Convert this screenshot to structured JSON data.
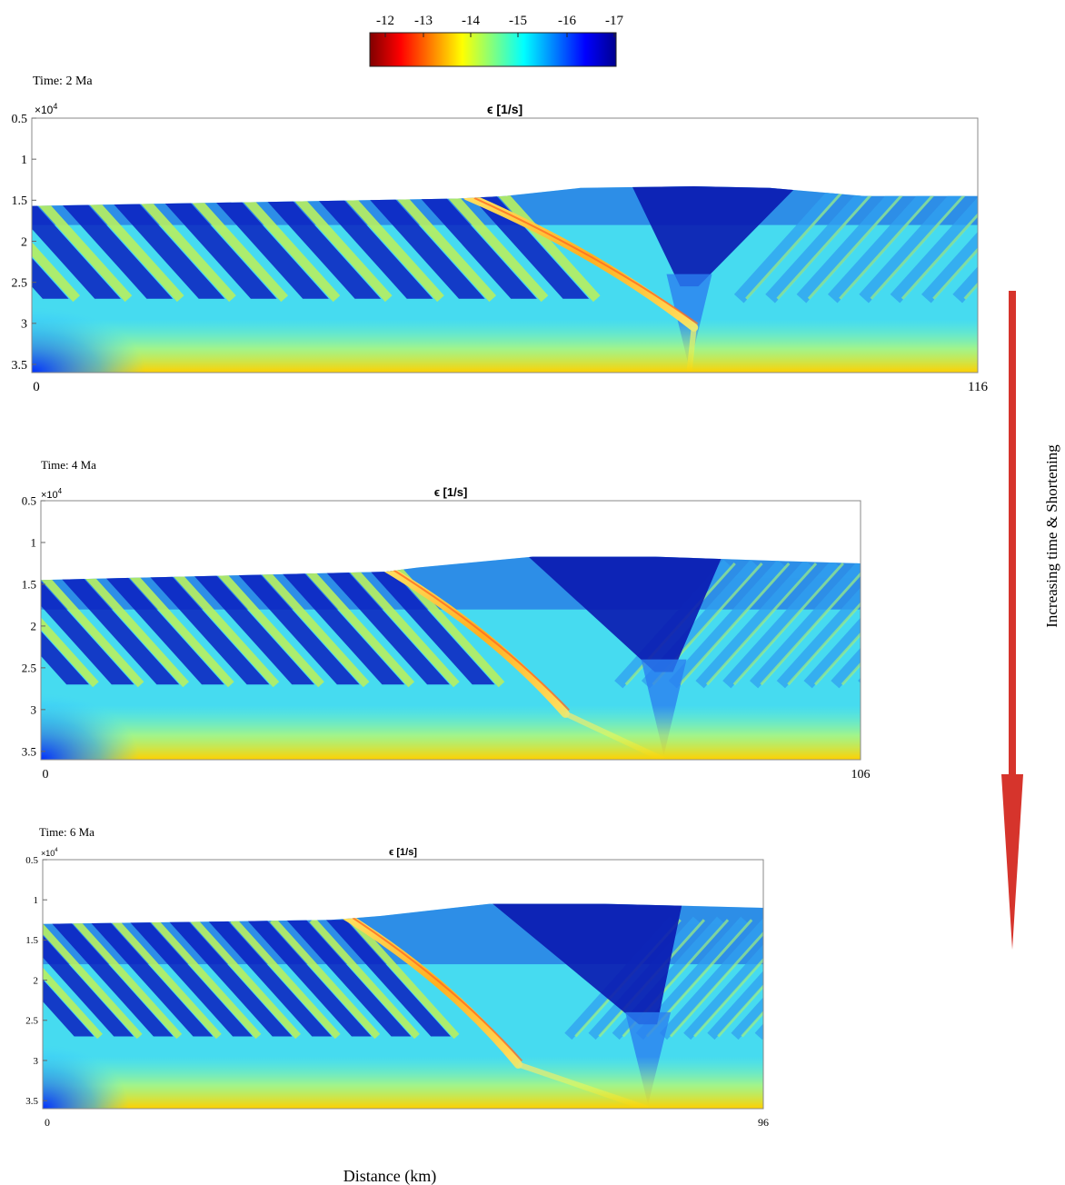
{
  "colorbar": {
    "ticks": [
      "-12",
      "-13",
      "-14",
      "-15",
      "-16",
      "-17"
    ],
    "colors": [
      "#800000",
      "#ff0000",
      "#ff8000",
      "#ffff00",
      "#80ff80",
      "#00ffff",
      "#0080ff",
      "#0000ff",
      "#00008f"
    ]
  },
  "arrow": {
    "label": "Increasing time & Shortening",
    "color": "#d6342c"
  },
  "chart_data": [
    {
      "type": "heatmap",
      "time_label": "Time: 2 Ma",
      "title": "ϵ [1/s]",
      "y_exponent": "×10",
      "y_exponent_power": "4",
      "ylim": [
        0.5,
        3.6
      ],
      "y_ticks": [
        "0.5",
        "1",
        "1.5",
        "2",
        "2.5",
        "3",
        "3.5"
      ],
      "x_ticks": [
        "0",
        "116"
      ],
      "xlim": [
        0,
        116
      ]
    },
    {
      "type": "heatmap",
      "time_label": "Time: 4 Ma",
      "title": "ϵ [1/s]",
      "y_exponent": "×10",
      "y_exponent_power": "4",
      "ylim": [
        0.5,
        3.6
      ],
      "y_ticks": [
        "0.5",
        "1",
        "1.5",
        "2",
        "2.5",
        "3",
        "3.5"
      ],
      "x_ticks": [
        "0",
        "106"
      ],
      "xlim": [
        0,
        106
      ]
    },
    {
      "type": "heatmap",
      "time_label": "Time: 6 Ma",
      "title": "ϵ [1/s]",
      "y_exponent": "×10",
      "y_exponent_power": "4",
      "ylim": [
        0.5,
        3.6
      ],
      "y_ticks": [
        "0.5",
        "1",
        "1.5",
        "2",
        "2.5",
        "3",
        "3.5"
      ],
      "x_ticks": [
        "0",
        "96"
      ],
      "xlim": [
        0,
        96
      ]
    }
  ],
  "xlabel": "Distance (km)"
}
